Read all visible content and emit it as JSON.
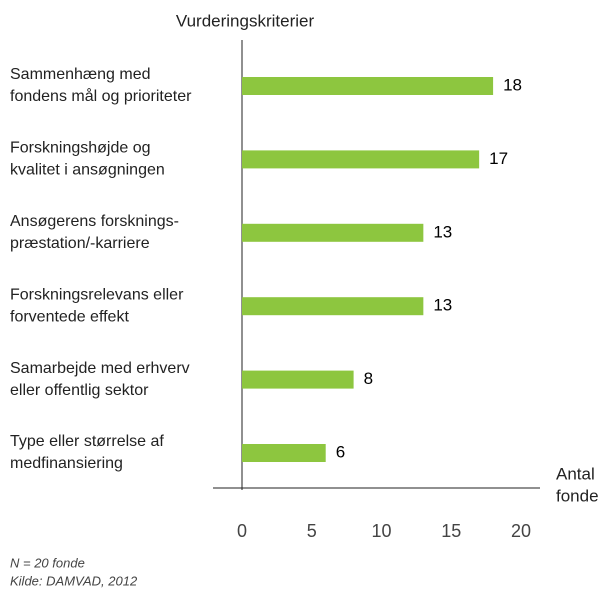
{
  "chart_data": {
    "type": "bar",
    "orientation": "horizontal",
    "title": "Vurderingskriterier",
    "xlabel": [
      "Antal",
      "fonde"
    ],
    "categories": [
      [
        "Sammenhæng med",
        "fondens mål og prioriteter"
      ],
      [
        "Forskningshøjde og",
        "kvalitet i ansøgningen"
      ],
      [
        "Ansøgerens forsknings-",
        "præstation/-karriere"
      ],
      [
        "Forskningsrelevans eller",
        "forventede effekt"
      ],
      [
        "Samarbejde med erhverv",
        "eller offentlig sektor"
      ],
      [
        "Type eller størrelse af",
        "medfinansiering"
      ]
    ],
    "values": [
      18,
      17,
      13,
      13,
      8,
      6
    ],
    "color": "#8dc63f",
    "xlim": [
      0,
      20
    ],
    "xticks": [
      0,
      5,
      10,
      15,
      20
    ],
    "grid": false,
    "notes": [
      "N = 20 fonde",
      "Kilde: DAMVAD, 2012"
    ]
  }
}
